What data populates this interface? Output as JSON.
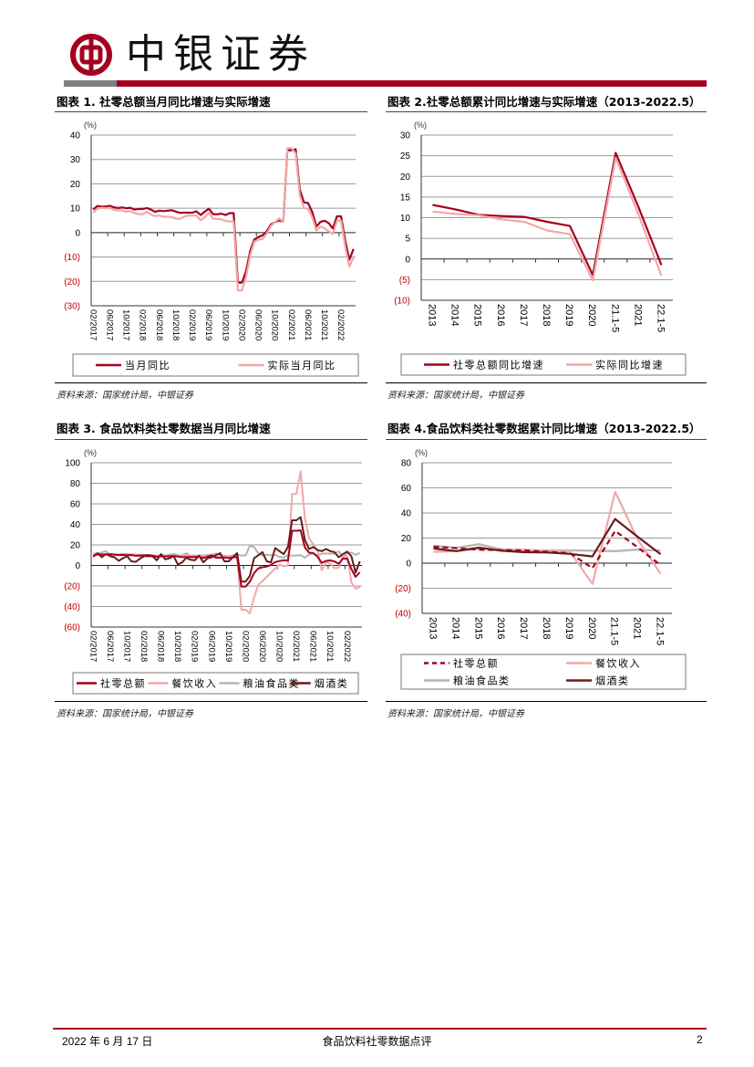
{
  "header": {
    "brand": "中银证券",
    "colors": {
      "brand_red": "#a50021",
      "gray": "#7f7f7f"
    }
  },
  "charts_meta": [
    {
      "title": "图表 1. 社零总额当月同比增速与实际增速",
      "source": "资料来源：国家统计局，中银证券"
    },
    {
      "title": "图表 2.社零总额累计同比增速与实际增速（2013-2022.5）",
      "source": "资料来源：国家统计局，中银证券"
    },
    {
      "title": "图表 3. 食品饮料类社零数据当月同比增速",
      "source": "资料来源：国家统计局，中银证券"
    },
    {
      "title": "图表 4.食品饮料类社零数据累计同比增速（2013-2022.5）",
      "source": "资料来源：国家统计局，中银证券"
    }
  ],
  "chart_data": [
    {
      "type": "line",
      "unit": "(%)",
      "ylim": [
        -30,
        40
      ],
      "yticks": [
        40,
        30,
        20,
        10,
        0,
        -10,
        -20,
        -30
      ],
      "ytick_labels": [
        "40",
        "30",
        "20",
        "10",
        "0",
        "(10)",
        "(20)",
        "(30)"
      ],
      "x_start": "02/2017",
      "x_tick_every": 4,
      "x_tick_labels": [
        "02/2017",
        "06/2017",
        "10/2017",
        "02/2018",
        "06/2018",
        "10/2018",
        "02/2019",
        "06/2019",
        "10/2019",
        "02/2020",
        "06/2020",
        "10/2020",
        "02/2021",
        "06/2021",
        "10/2021",
        "02/2022"
      ],
      "legend": "bottom",
      "series": [
        {
          "name": "当月同比",
          "color": "#a50021",
          "width": 2.2,
          "values": [
            9.5,
            10.9,
            10.7,
            10.7,
            11.0,
            10.4,
            10.1,
            10.3,
            10.0,
            10.2,
            9.4,
            9.7,
            9.7,
            10.1,
            9.4,
            8.5,
            9.0,
            8.8,
            9.0,
            9.2,
            8.6,
            8.1,
            8.2,
            8.2,
            8.2,
            8.7,
            7.2,
            8.6,
            9.8,
            7.6,
            7.5,
            7.8,
            7.2,
            8.0,
            8.0,
            -20.5,
            -20.5,
            -15.8,
            -7.5,
            -2.8,
            -1.8,
            -1.1,
            0.5,
            3.3,
            4.3,
            5.0,
            4.6,
            33.8,
            33.8,
            34.2,
            17.7,
            12.4,
            12.1,
            8.5,
            2.5,
            4.4,
            4.9,
            3.9,
            1.7,
            6.7,
            6.7,
            -3.5,
            -11.1,
            -6.7
          ]
        },
        {
          "name": "实际当月同比",
          "color": "#f0a8a8",
          "width": 2.2,
          "values": [
            8.2,
            9.8,
            10.2,
            10.0,
            10.2,
            9.3,
            9.1,
            9.1,
            8.6,
            8.8,
            8.0,
            7.6,
            7.6,
            8.5,
            7.4,
            6.8,
            7.0,
            6.5,
            6.5,
            6.4,
            5.8,
            5.6,
            6.6,
            7.0,
            7.0,
            7.0,
            5.1,
            6.4,
            8.2,
            5.7,
            5.6,
            5.5,
            4.8,
            4.6,
            4.6,
            -23.7,
            -23.7,
            -18.1,
            -9.1,
            -3.7,
            -2.9,
            -2.6,
            -0.4,
            2.7,
            4.3,
            5.8,
            4.6,
            34.6,
            34.6,
            32.5,
            15.4,
            10.1,
            9.7,
            6.4,
            0.9,
            2.5,
            1.8,
            0.5,
            -0.5,
            4.9,
            4.9,
            -5.9,
            -13.9,
            -10.1
          ]
        }
      ]
    },
    {
      "type": "line",
      "unit": "(%)",
      "ylim": [
        -10,
        30
      ],
      "yticks": [
        30,
        25,
        20,
        15,
        10,
        5,
        0,
        -5,
        -10
      ],
      "ytick_labels": [
        "30",
        "25",
        "20",
        "15",
        "10",
        "5",
        "0",
        "(5)",
        "(10)"
      ],
      "categories": [
        "2013",
        "2014",
        "2015",
        "2016",
        "2017",
        "2018",
        "2019",
        "2020",
        "21.1-5",
        "2021",
        "22.1-5"
      ],
      "legend": "bottom",
      "series": [
        {
          "name": "社零总额同比增速",
          "color": "#a50021",
          "width": 2.2,
          "values": [
            13.1,
            12.0,
            10.7,
            10.4,
            10.2,
            9.0,
            8.0,
            -3.9,
            25.7,
            12.5,
            -1.5
          ]
        },
        {
          "name": "实际同比增速",
          "color": "#f0a8a8",
          "width": 2.2,
          "values": [
            11.5,
            10.9,
            10.6,
            9.6,
            9.0,
            6.9,
            6.0,
            -5.2,
            24.5,
            10.7,
            -4.1
          ]
        }
      ]
    },
    {
      "type": "line",
      "unit": "(%)",
      "ylim": [
        -60,
        100
      ],
      "yticks": [
        100,
        80,
        60,
        40,
        20,
        0,
        -20,
        -40,
        -60
      ],
      "ytick_labels": [
        "100",
        "80",
        "60",
        "40",
        "20",
        "0",
        "(20)",
        "(40)",
        "(60)"
      ],
      "x_start": "02/2017",
      "x_tick_every": 4,
      "x_tick_labels": [
        "02/2017",
        "06/2017",
        "10/2017",
        "02/2018",
        "06/2018",
        "10/2018",
        "02/2019",
        "06/2019",
        "10/2019",
        "02/2020",
        "06/2020",
        "10/2020",
        "02/2021",
        "06/2021",
        "10/2021",
        "02/2022"
      ],
      "legend": "bottom",
      "series": [
        {
          "name": "粮油食品类",
          "color": "#b4b4b4",
          "width": 2,
          "values": [
            11.8,
            11.2,
            12.6,
            14.0,
            10.0,
            10.9,
            10.8,
            11.4,
            9.5,
            9.8,
            10.5,
            10.5,
            10.5,
            9.7,
            9.3,
            8.5,
            9.4,
            9.6,
            10.4,
            11.2,
            10.1,
            10.0,
            11.9,
            9.1,
            9.1,
            9.8,
            9.6,
            10.4,
            10.5,
            11.6,
            10.2,
            9.4,
            9.0,
            9.9,
            10.4,
            9.7,
            9.7,
            19.3,
            17.9,
            11.8,
            9.5,
            10.4,
            9.9,
            10.3,
            8.2,
            7.9,
            9.9,
            9.5,
            9.5,
            10.1,
            7.6,
            10.8,
            11.5,
            9.6,
            11.5,
            11.7,
            11.5,
            11.5,
            13.8,
            7.7,
            12.0,
            12.5,
            10.3,
            12.3
          ]
        },
        {
          "name": "餐饮收入",
          "color": "#f0a8a8",
          "width": 2,
          "values": [
            9.9,
            10.2,
            10.3,
            11.1,
            11.0,
            11.1,
            10.3,
            10.9,
            11.3,
            10.7,
            10.7,
            8.5,
            10.0,
            10.1,
            9.8,
            9.6,
            10.1,
            9.9,
            8.5,
            9.1,
            9.2,
            10.1,
            10.1,
            9.7,
            9.7,
            9.1,
            8.6,
            9.9,
            10.2,
            8.4,
            8.1,
            9.4,
            9.2,
            9.2,
            9.2,
            -43.1,
            -43.1,
            -46.8,
            -31.1,
            -18.9,
            -15.2,
            -11.0,
            -7.0,
            -2.9,
            0.8,
            -0.6,
            0.0,
            69.6,
            69.6,
            91.6,
            46.4,
            26.6,
            20.4,
            14.3,
            -4.5,
            3.1,
            2.0,
            -2.7,
            -2.3,
            8.9,
            8.9,
            -16.4,
            -22.7,
            -21.1
          ]
        },
        {
          "name": "烟酒类",
          "color": "#6b1a1a",
          "width": 2,
          "values": [
            8.4,
            12.0,
            8.0,
            11.0,
            9.0,
            8.0,
            4.5,
            7.0,
            9.0,
            4.0,
            3.5,
            6.5,
            9.0,
            9.0,
            9.0,
            5.0,
            11.0,
            6.0,
            7.0,
            9.0,
            1.0,
            3.0,
            7.5,
            5.5,
            5.0,
            9.5,
            3.0,
            7.0,
            8.0,
            10.0,
            12.0,
            4.0,
            4.0,
            8.0,
            12.0,
            -15.7,
            -15.7,
            -10.2,
            7.0,
            10.0,
            13.0,
            4.0,
            3.0,
            17.0,
            14.0,
            11.0,
            18.0,
            44.0,
            44.0,
            47.0,
            25.0,
            16.0,
            18.0,
            15.0,
            14.0,
            16.0,
            14.0,
            13.0,
            8.0,
            11.0,
            13.5,
            9.0,
            -7.0,
            4.0
          ]
        },
        {
          "name": "社零总额",
          "color": "#a50021",
          "width": 2,
          "values": [
            9.5,
            10.9,
            10.7,
            10.7,
            11.0,
            10.4,
            10.1,
            10.3,
            10.0,
            10.2,
            9.4,
            9.7,
            9.7,
            10.1,
            9.4,
            8.5,
            9.0,
            8.8,
            9.0,
            9.2,
            8.6,
            8.1,
            8.2,
            8.2,
            8.2,
            8.7,
            7.2,
            8.6,
            9.8,
            7.6,
            7.5,
            7.8,
            7.2,
            8.0,
            8.0,
            -20.5,
            -20.5,
            -15.8,
            -7.5,
            -2.8,
            -1.8,
            -1.1,
            0.5,
            3.3,
            4.3,
            5.0,
            4.6,
            33.8,
            33.8,
            34.2,
            17.7,
            12.4,
            12.1,
            8.5,
            2.5,
            4.4,
            4.9,
            3.9,
            1.7,
            6.7,
            6.7,
            -3.5,
            -11.1,
            -6.7
          ]
        }
      ],
      "legend_order": [
        "社零总额",
        "餐饮收入",
        "粮油食品类",
        "烟酒类"
      ]
    },
    {
      "type": "line",
      "unit": "(%)",
      "ylim": [
        -40,
        80
      ],
      "yticks": [
        80,
        60,
        40,
        20,
        0,
        -20,
        -40
      ],
      "ytick_labels": [
        "80",
        "60",
        "40",
        "20",
        "0",
        "(20)",
        "(40)"
      ],
      "categories": [
        "2013",
        "2014",
        "2015",
        "2016",
        "2017",
        "2018",
        "2019",
        "2020",
        "21.1-5",
        "2021",
        "22.1-5"
      ],
      "legend": "bottom",
      "series": [
        {
          "name": "粮油食品类",
          "color": "#b4b4b4",
          "width": 2.2,
          "values": [
            14.0,
            12.2,
            15.1,
            11.0,
            10.2,
            10.2,
            10.2,
            9.9,
            9.5,
            10.8,
            10.0
          ]
        },
        {
          "name": "餐饮收入",
          "color": "#f0a8a8",
          "width": 2.2,
          "values": [
            9.0,
            9.7,
            11.7,
            10.8,
            10.7,
            9.5,
            9.4,
            -16.6,
            56.8,
            18.6,
            -8.5
          ]
        },
        {
          "name": "社零总额",
          "color": "#a50021",
          "width": 2.2,
          "dashed": true,
          "values": [
            13.1,
            12.0,
            10.7,
            10.4,
            10.2,
            9.0,
            8.0,
            -3.9,
            25.7,
            12.5,
            -1.5
          ]
        },
        {
          "name": "烟酒类",
          "color": "#6b1a1a",
          "width": 2.2,
          "values": [
            11.7,
            9.6,
            12.4,
            9.9,
            8.7,
            8.5,
            7.4,
            5.4,
            35.2,
            20.9,
            7.2
          ]
        }
      ],
      "legend_order": [
        "社零总额",
        "餐饮收入",
        "粮油食品类",
        "烟酒类"
      ]
    }
  ],
  "footer": {
    "date": "2022 年 6 月 17 日",
    "report_title": "食品饮料社零数据点评",
    "page_number": "2"
  }
}
